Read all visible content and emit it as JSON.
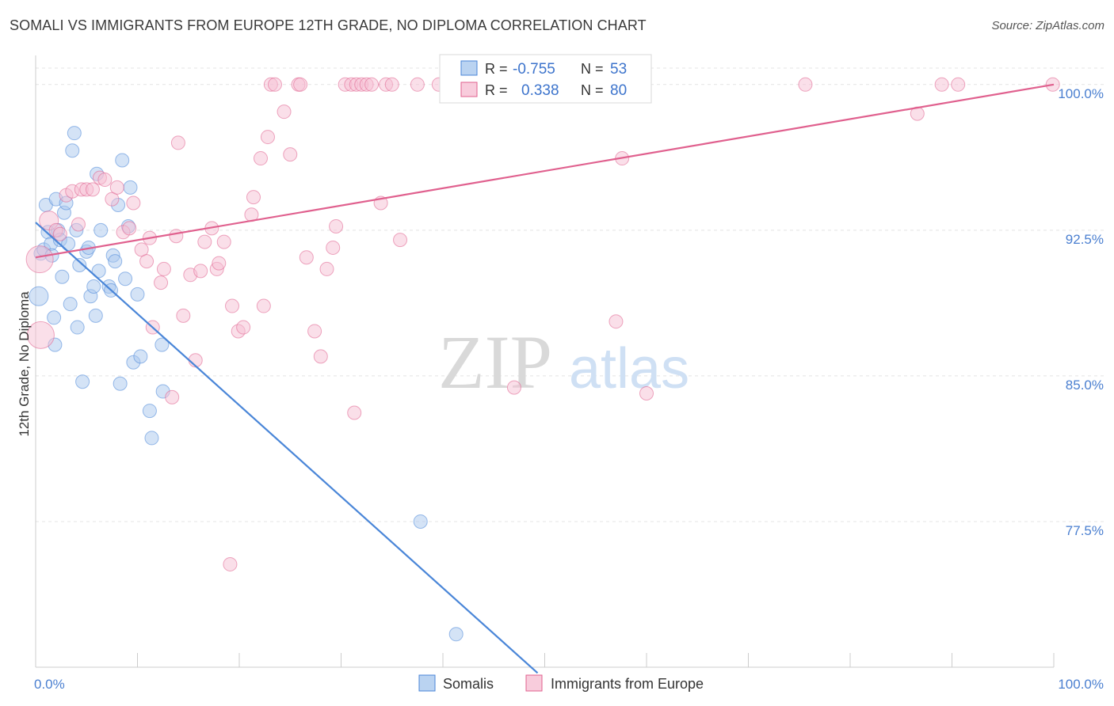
{
  "chart_data": {
    "type": "scatter",
    "title": "SOMALI VS IMMIGRANTS FROM EUROPE 12TH GRADE, NO DIPLOMA CORRELATION CHART",
    "source": "Source: ZipAtlas.com",
    "ylabel": "12th Grade, No Diploma",
    "xlim": [
      0,
      100
    ],
    "ylim": [
      70,
      101.5
    ],
    "x_tick_labels": [
      "0.0%",
      "100.0%"
    ],
    "y_ticks": [
      77.5,
      85.0,
      92.5,
      100.0
    ],
    "y_tick_labels": [
      "77.5%",
      "85.0%",
      "92.5%",
      "100.0%"
    ],
    "grid": true,
    "legend_position": "top-center",
    "watermark": {
      "zip": "ZIP",
      "atlas": "atlas"
    },
    "legend": {
      "r_label": "R =",
      "n_label": "N =",
      "entries": [
        {
          "r": "-0.755",
          "n": "53"
        },
        {
          "r": "0.338",
          "n": "80"
        }
      ]
    },
    "series": [
      {
        "name": "Somalis",
        "color": "#4a86d8",
        "fill": "#a9c8ee",
        "trend": {
          "x": [
            0,
            49.3
          ],
          "y": [
            92.9,
            69.7
          ]
        },
        "points": [
          [
            0.3,
            89.1,
            2
          ],
          [
            0.5,
            91.3,
            1
          ],
          [
            0.8,
            91.5,
            1
          ],
          [
            1.0,
            93.8,
            1
          ],
          [
            1.2,
            92.4,
            1
          ],
          [
            1.5,
            91.8,
            1
          ],
          [
            1.6,
            91.2,
            1
          ],
          [
            1.8,
            88.0,
            1
          ],
          [
            1.9,
            86.6,
            1
          ],
          [
            2.0,
            94.1,
            1
          ],
          [
            2.2,
            92.5,
            1
          ],
          [
            2.4,
            92.0,
            1
          ],
          [
            2.6,
            90.1,
            1
          ],
          [
            2.8,
            93.4,
            1
          ],
          [
            3.0,
            93.9,
            1
          ],
          [
            3.2,
            91.8,
            1
          ],
          [
            3.4,
            88.7,
            1
          ],
          [
            3.6,
            96.6,
            1
          ],
          [
            3.8,
            97.5,
            1
          ],
          [
            4.0,
            92.5,
            1
          ],
          [
            4.1,
            87.5,
            1
          ],
          [
            4.3,
            90.7,
            1
          ],
          [
            4.6,
            84.7,
            1
          ],
          [
            5.0,
            91.4,
            1
          ],
          [
            5.2,
            91.6,
            1
          ],
          [
            5.4,
            89.1,
            1
          ],
          [
            5.7,
            89.6,
            1
          ],
          [
            5.9,
            88.1,
            1
          ],
          [
            6.0,
            95.4,
            1
          ],
          [
            6.2,
            90.4,
            1
          ],
          [
            6.4,
            92.5,
            1
          ],
          [
            7.2,
            89.6,
            1
          ],
          [
            7.4,
            89.4,
            1
          ],
          [
            7.6,
            91.2,
            1
          ],
          [
            7.8,
            90.9,
            1
          ],
          [
            8.1,
            93.8,
            1
          ],
          [
            8.3,
            84.6,
            1
          ],
          [
            8.5,
            96.1,
            1
          ],
          [
            8.8,
            90.0,
            1
          ],
          [
            9.1,
            92.7,
            1
          ],
          [
            9.3,
            94.7,
            1
          ],
          [
            9.6,
            85.7,
            1
          ],
          [
            10.0,
            89.2,
            1
          ],
          [
            10.3,
            86.0,
            1
          ],
          [
            11.2,
            83.2,
            1
          ],
          [
            11.4,
            81.8,
            1
          ],
          [
            12.4,
            86.6,
            1
          ],
          [
            12.5,
            84.2,
            1
          ],
          [
            37.8,
            77.5,
            1
          ],
          [
            41.3,
            71.7,
            1
          ]
        ]
      },
      {
        "name": "Immigrants from Europe",
        "color": "#e0608e",
        "fill": "#f6bfd3",
        "trend": {
          "x": [
            0,
            100
          ],
          "y": [
            91.1,
            100.0
          ]
        },
        "points": [
          [
            0.4,
            91.0,
            3
          ],
          [
            0.5,
            87.1,
            3
          ],
          [
            1.3,
            93.0,
            2
          ],
          [
            2.0,
            92.5,
            1
          ],
          [
            2.4,
            92.3,
            1
          ],
          [
            3.0,
            94.3,
            1
          ],
          [
            3.6,
            94.5,
            1
          ],
          [
            4.2,
            92.8,
            1
          ],
          [
            4.5,
            94.6,
            1
          ],
          [
            5.0,
            94.6,
            1
          ],
          [
            5.6,
            94.6,
            1
          ],
          [
            6.3,
            95.2,
            1
          ],
          [
            6.8,
            95.1,
            1
          ],
          [
            7.5,
            94.1,
            1
          ],
          [
            8.0,
            94.7,
            1
          ],
          [
            8.6,
            92.4,
            1
          ],
          [
            9.2,
            92.6,
            1
          ],
          [
            9.6,
            93.9,
            1
          ],
          [
            10.4,
            91.5,
            1
          ],
          [
            10.9,
            90.9,
            1
          ],
          [
            11.2,
            92.1,
            1
          ],
          [
            11.5,
            87.5,
            1
          ],
          [
            12.3,
            89.8,
            1
          ],
          [
            12.6,
            90.5,
            1
          ],
          [
            13.4,
            83.9,
            1
          ],
          [
            13.8,
            92.2,
            1
          ],
          [
            14.0,
            97.0,
            1
          ],
          [
            14.5,
            88.1,
            1
          ],
          [
            15.2,
            90.2,
            1
          ],
          [
            15.7,
            85.8,
            1
          ],
          [
            16.2,
            90.4,
            1
          ],
          [
            16.6,
            91.9,
            1
          ],
          [
            17.3,
            92.6,
            1
          ],
          [
            17.8,
            90.5,
            1
          ],
          [
            18.0,
            90.8,
            1
          ],
          [
            18.5,
            91.9,
            1
          ],
          [
            19.3,
            88.6,
            1
          ],
          [
            19.9,
            87.3,
            1
          ],
          [
            20.4,
            87.5,
            1
          ],
          [
            19.1,
            75.3,
            1
          ],
          [
            21.2,
            93.3,
            1
          ],
          [
            21.4,
            94.2,
            1
          ],
          [
            22.1,
            96.2,
            1
          ],
          [
            22.4,
            88.6,
            1
          ],
          [
            22.8,
            97.3,
            1
          ],
          [
            23.1,
            100.0,
            1
          ],
          [
            23.5,
            100.0,
            1
          ],
          [
            24.4,
            98.6,
            1
          ],
          [
            25.0,
            96.4,
            1
          ],
          [
            25.8,
            100.0,
            1
          ],
          [
            26.0,
            100.0,
            1
          ],
          [
            26.6,
            91.1,
            1
          ],
          [
            27.4,
            87.3,
            1
          ],
          [
            28.0,
            86.0,
            1
          ],
          [
            28.6,
            90.5,
            1
          ],
          [
            29.2,
            91.6,
            1
          ],
          [
            29.5,
            92.7,
            1
          ],
          [
            30.4,
            100.0,
            1
          ],
          [
            31.0,
            100.0,
            1
          ],
          [
            31.3,
            83.1,
            1
          ],
          [
            31.5,
            100.0,
            1
          ],
          [
            32.0,
            100.0,
            1
          ],
          [
            32.5,
            100.0,
            1
          ],
          [
            33.0,
            100.0,
            1
          ],
          [
            33.9,
            93.9,
            1
          ],
          [
            34.4,
            100.0,
            1
          ],
          [
            35.0,
            100.0,
            1
          ],
          [
            35.8,
            92.0,
            1
          ],
          [
            37.5,
            100.0,
            1
          ],
          [
            39.6,
            100.0,
            1
          ],
          [
            44.2,
            100.0,
            1
          ],
          [
            47.0,
            84.4,
            1
          ],
          [
            57.0,
            87.8,
            1
          ],
          [
            57.6,
            96.2,
            1
          ],
          [
            60.0,
            84.1,
            1
          ],
          [
            75.6,
            100.0,
            1
          ],
          [
            86.6,
            98.5,
            1
          ],
          [
            89.0,
            100.0,
            1
          ],
          [
            99.9,
            100.0,
            1
          ],
          [
            90.6,
            100.0,
            1
          ]
        ]
      }
    ]
  }
}
